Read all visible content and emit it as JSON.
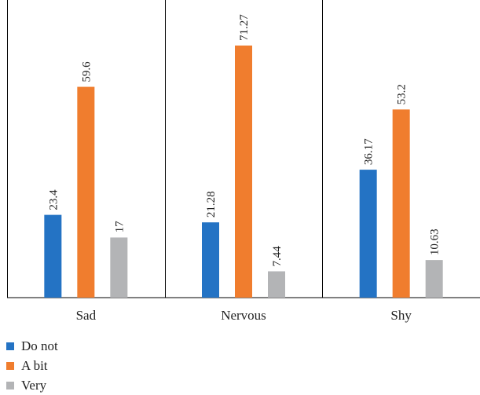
{
  "chart_data": {
    "type": "bar",
    "categories": [
      "Sad",
      "Nervous",
      "Shy"
    ],
    "series": [
      {
        "name": "Do not",
        "values": [
          23.4,
          21.28,
          36.17
        ],
        "labels": [
          "23.4",
          "21.28",
          "36.17"
        ],
        "color": "#2473C4"
      },
      {
        "name": "A bit",
        "values": [
          59.6,
          71.27,
          53.2
        ],
        "labels": [
          "59.6",
          "71.27",
          "53.2"
        ],
        "color": "#F07D2E"
      },
      {
        "name": "Very",
        "values": [
          17,
          7.44,
          10.63
        ],
        "labels": [
          "17",
          "7.44",
          "10.63"
        ],
        "color": "#B3B4B6"
      }
    ],
    "ylim": [
      0,
      71.27
    ],
    "grid": false,
    "legend_position": "bottom-left",
    "category_separators": true
  }
}
